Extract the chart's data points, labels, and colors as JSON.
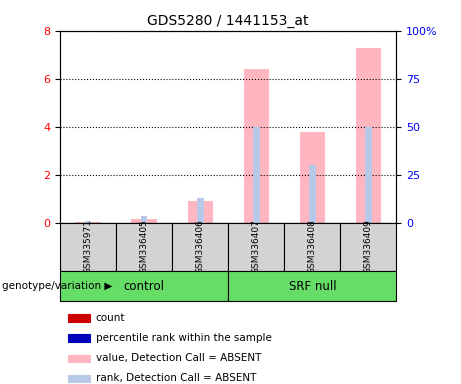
{
  "title": "GDS5280 / 1441153_at",
  "samples": [
    "GSM335971",
    "GSM336405",
    "GSM336406",
    "GSM336407",
    "GSM336408",
    "GSM336409"
  ],
  "groups": [
    "control",
    "control",
    "control",
    "SRF null",
    "SRF null",
    "SRF null"
  ],
  "group_labels": [
    "control",
    "SRF null"
  ],
  "value_absent": [
    0.05,
    0.15,
    0.9,
    6.4,
    3.8,
    7.3
  ],
  "rank_absent_pct": [
    1.0,
    3.5,
    13.0,
    50.0,
    30.0,
    50.0
  ],
  "value_color": "#ffb6c1",
  "rank_color": "#b8c8e8",
  "ylim_left": [
    0,
    8
  ],
  "ylim_right": [
    0,
    100
  ],
  "yticks_left": [
    0,
    2,
    4,
    6,
    8
  ],
  "yticks_right": [
    0,
    25,
    50,
    75,
    100
  ],
  "ytick_labels_right": [
    "0",
    "25",
    "50",
    "75",
    "100%"
  ],
  "background_color": "#ffffff",
  "legend_items": [
    {
      "color": "#cc0000",
      "label": "count",
      "edgecolor": "#cc0000"
    },
    {
      "color": "#0000bb",
      "label": "percentile rank within the sample",
      "edgecolor": "#0000bb"
    },
    {
      "color": "#ffb6c1",
      "label": "value, Detection Call = ABSENT",
      "edgecolor": "none"
    },
    {
      "color": "#b8c8e8",
      "label": "rank, Detection Call = ABSENT",
      "edgecolor": "none"
    }
  ]
}
